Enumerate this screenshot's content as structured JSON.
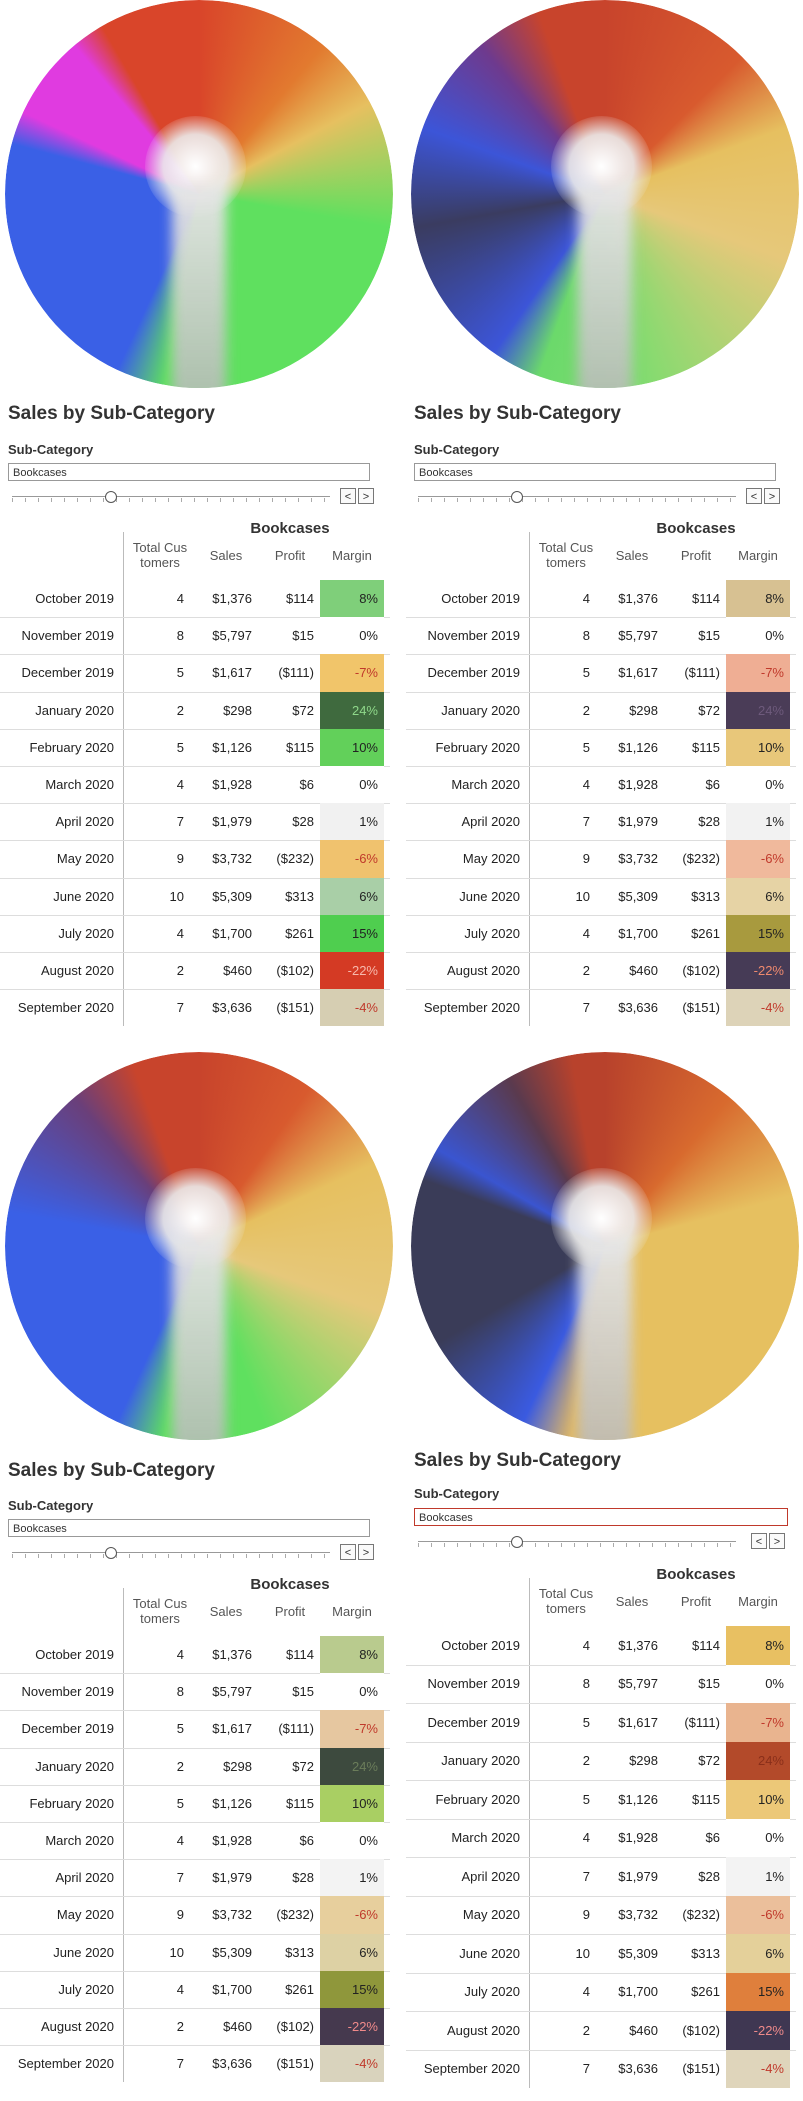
{
  "panels": [
    {
      "wheel": "vivid",
      "title": "Sales by Sub-Category",
      "filter_label": "Sub-Category",
      "filter_value": "Bookcases",
      "step_prev": "<",
      "step_next": ">",
      "table_title": "Bookcases",
      "columns": [
        "Total Cus tomers",
        "Sales",
        "Profit",
        "Margin"
      ],
      "rows": [
        {
          "month": "October 2019",
          "customers": "4",
          "sales": "$1,376",
          "profit": "$114",
          "margin": "8%",
          "color": "#7fcf7a",
          "text_color": "#222"
        },
        {
          "month": "November 2019",
          "customers": "8",
          "sales": "$5,797",
          "profit": "$15",
          "margin": "0%",
          "color": "#ffffff",
          "text_color": "#222"
        },
        {
          "month": "December 2019",
          "customers": "5",
          "sales": "$1,617",
          "profit": "($111)",
          "margin": "-7%",
          "color": "#f1c56a",
          "text_color": "#c0392b"
        },
        {
          "month": "January 2020",
          "customers": "2",
          "sales": "$298",
          "profit": "$72",
          "margin": "24%",
          "color": "#3f6a3e",
          "text_color": "#8fd88a"
        },
        {
          "month": "February 2020",
          "customers": "5",
          "sales": "$1,126",
          "profit": "$115",
          "margin": "10%",
          "color": "#62d05a",
          "text_color": "#222"
        },
        {
          "month": "March 2020",
          "customers": "4",
          "sales": "$1,928",
          "profit": "$6",
          "margin": "0%",
          "color": "#ffffff",
          "text_color": "#222"
        },
        {
          "month": "April 2020",
          "customers": "7",
          "sales": "$1,979",
          "profit": "$28",
          "margin": "1%",
          "color": "#f1f1f1",
          "text_color": "#222"
        },
        {
          "month": "May 2020",
          "customers": "9",
          "sales": "$3,732",
          "profit": "($232)",
          "margin": "-6%",
          "color": "#f0c26e",
          "text_color": "#c0392b"
        },
        {
          "month": "June 2020",
          "customers": "10",
          "sales": "$5,309",
          "profit": "$313",
          "margin": "6%",
          "color": "#a9cfa7",
          "text_color": "#222"
        },
        {
          "month": "July 2020",
          "customers": "4",
          "sales": "$1,700",
          "profit": "$261",
          "margin": "15%",
          "color": "#4fce4f",
          "text_color": "#222"
        },
        {
          "month": "August 2020",
          "customers": "2",
          "sales": "$460",
          "profit": "($102)",
          "margin": "-22%",
          "color": "#d43a24",
          "text_color": "#f7b9ad"
        },
        {
          "month": "September 2020",
          "customers": "7",
          "sales": "$3,636",
          "profit": "($151)",
          "margin": "-4%",
          "color": "#d6ceb2",
          "text_color": "#c0392b"
        }
      ]
    },
    {
      "wheel": "warm",
      "title": "Sales by Sub-Category",
      "filter_label": "Sub-Category",
      "filter_value": "Bookcases",
      "step_prev": "<",
      "step_next": ">",
      "table_title": "Bookcases",
      "columns": [
        "Total Cus tomers",
        "Sales",
        "Profit",
        "Margin"
      ],
      "rows": [
        {
          "month": "October 2019",
          "customers": "4",
          "sales": "$1,376",
          "profit": "$114",
          "margin": "8%",
          "color": "#d7c192",
          "text_color": "#222"
        },
        {
          "month": "November 2019",
          "customers": "8",
          "sales": "$5,797",
          "profit": "$15",
          "margin": "0%",
          "color": "#ffffff",
          "text_color": "#222"
        },
        {
          "month": "December 2019",
          "customers": "5",
          "sales": "$1,617",
          "profit": "($111)",
          "margin": "-7%",
          "color": "#efae94",
          "text_color": "#c0392b"
        },
        {
          "month": "January 2020",
          "customers": "2",
          "sales": "$298",
          "profit": "$72",
          "margin": "24%",
          "color": "#4a3c57",
          "text_color": "#6e5a7c"
        },
        {
          "month": "February 2020",
          "customers": "5",
          "sales": "$1,126",
          "profit": "$115",
          "margin": "10%",
          "color": "#e8c77a",
          "text_color": "#222"
        },
        {
          "month": "March 2020",
          "customers": "4",
          "sales": "$1,928",
          "profit": "$6",
          "margin": "0%",
          "color": "#ffffff",
          "text_color": "#222"
        },
        {
          "month": "April 2020",
          "customers": "7",
          "sales": "$1,979",
          "profit": "$28",
          "margin": "1%",
          "color": "#f2f2f2",
          "text_color": "#222"
        },
        {
          "month": "May 2020",
          "customers": "9",
          "sales": "$3,732",
          "profit": "($232)",
          "margin": "-6%",
          "color": "#f0b99c",
          "text_color": "#c0392b"
        },
        {
          "month": "June 2020",
          "customers": "10",
          "sales": "$5,309",
          "profit": "$313",
          "margin": "6%",
          "color": "#e6d3a5",
          "text_color": "#222"
        },
        {
          "month": "July 2020",
          "customers": "4",
          "sales": "$1,700",
          "profit": "$261",
          "margin": "15%",
          "color": "#a89a3e",
          "text_color": "#222"
        },
        {
          "month": "August 2020",
          "customers": "2",
          "sales": "$460",
          "profit": "($102)",
          "margin": "-22%",
          "color": "#463b56",
          "text_color": "#f08a6e"
        },
        {
          "month": "September 2020",
          "customers": "7",
          "sales": "$3,636",
          "profit": "($151)",
          "margin": "-4%",
          "color": "#ddd3b8",
          "text_color": "#c0392b"
        }
      ]
    },
    {
      "wheel": "mixed",
      "title": "Sales by Sub-Category",
      "filter_label": "Sub-Category",
      "filter_value": "Bookcases",
      "step_prev": "<",
      "step_next": ">",
      "table_title": "Bookcases",
      "columns": [
        "Total Cus tomers",
        "Sales",
        "Profit",
        "Margin"
      ],
      "rows": [
        {
          "month": "October 2019",
          "customers": "4",
          "sales": "$1,376",
          "profit": "$114",
          "margin": "8%",
          "color": "#b9cb8e",
          "text_color": "#222"
        },
        {
          "month": "November 2019",
          "customers": "8",
          "sales": "$5,797",
          "profit": "$15",
          "margin": "0%",
          "color": "#ffffff",
          "text_color": "#222"
        },
        {
          "month": "December 2019",
          "customers": "5",
          "sales": "$1,617",
          "profit": "($111)",
          "margin": "-7%",
          "color": "#e6c7a0",
          "text_color": "#c0392b"
        },
        {
          "month": "January 2020",
          "customers": "2",
          "sales": "$298",
          "profit": "$72",
          "margin": "24%",
          "color": "#3d4a3e",
          "text_color": "#6b7d5a"
        },
        {
          "month": "February 2020",
          "customers": "5",
          "sales": "$1,126",
          "profit": "$115",
          "margin": "10%",
          "color": "#a9cf63",
          "text_color": "#222"
        },
        {
          "month": "March 2020",
          "customers": "4",
          "sales": "$1,928",
          "profit": "$6",
          "margin": "0%",
          "color": "#ffffff",
          "text_color": "#222"
        },
        {
          "month": "April 2020",
          "customers": "7",
          "sales": "$1,979",
          "profit": "$28",
          "margin": "1%",
          "color": "#f3f3f3",
          "text_color": "#222"
        },
        {
          "month": "May 2020",
          "customers": "9",
          "sales": "$3,732",
          "profit": "($232)",
          "margin": "-6%",
          "color": "#e7cf9d",
          "text_color": "#c0392b"
        },
        {
          "month": "June 2020",
          "customers": "10",
          "sales": "$5,309",
          "profit": "$313",
          "margin": "6%",
          "color": "#ddd1a4",
          "text_color": "#222"
        },
        {
          "month": "July 2020",
          "customers": "4",
          "sales": "$1,700",
          "profit": "$261",
          "margin": "15%",
          "color": "#8f973b",
          "text_color": "#222"
        },
        {
          "month": "August 2020",
          "customers": "2",
          "sales": "$460",
          "profit": "($102)",
          "margin": "-22%",
          "color": "#45394e",
          "text_color": "#f08a8a"
        },
        {
          "month": "September 2020",
          "customers": "7",
          "sales": "$3,636",
          "profit": "($151)",
          "margin": "-4%",
          "color": "#d9d3bd",
          "text_color": "#c0392b"
        }
      ]
    },
    {
      "wheel": "dark",
      "title": "Sales by Sub-Category",
      "filter_label": "Sub-Category",
      "filter_value": "Bookcases",
      "step_prev": "<",
      "step_next": ">",
      "table_title": "Bookcases",
      "columns": [
        "Total Cus tomers",
        "Sales",
        "Profit",
        "Margin"
      ],
      "rows": [
        {
          "month": "October 2019",
          "customers": "4",
          "sales": "$1,376",
          "profit": "$114",
          "margin": "8%",
          "color": "#e8c062",
          "text_color": "#222"
        },
        {
          "month": "November 2019",
          "customers": "8",
          "sales": "$5,797",
          "profit": "$15",
          "margin": "0%",
          "color": "#ffffff",
          "text_color": "#222"
        },
        {
          "month": "December 2019",
          "customers": "5",
          "sales": "$1,617",
          "profit": "($111)",
          "margin": "-7%",
          "color": "#e9b48f",
          "text_color": "#c0392b"
        },
        {
          "month": "January 2020",
          "customers": "2",
          "sales": "$298",
          "profit": "$72",
          "margin": "24%",
          "color": "#b34a2a",
          "text_color": "#8a2f1a"
        },
        {
          "month": "February 2020",
          "customers": "5",
          "sales": "$1,126",
          "profit": "$115",
          "margin": "10%",
          "color": "#ecc878",
          "text_color": "#222"
        },
        {
          "month": "March 2020",
          "customers": "4",
          "sales": "$1,928",
          "profit": "$6",
          "margin": "0%",
          "color": "#ffffff",
          "text_color": "#222"
        },
        {
          "month": "April 2020",
          "customers": "7",
          "sales": "$1,979",
          "profit": "$28",
          "margin": "1%",
          "color": "#f3f3f3",
          "text_color": "#222"
        },
        {
          "month": "May 2020",
          "customers": "9",
          "sales": "$3,732",
          "profit": "($232)",
          "margin": "-6%",
          "color": "#ebbf9b",
          "text_color": "#c0392b"
        },
        {
          "month": "June 2020",
          "customers": "10",
          "sales": "$5,309",
          "profit": "$313",
          "margin": "6%",
          "color": "#e4d09a",
          "text_color": "#222"
        },
        {
          "month": "July 2020",
          "customers": "4",
          "sales": "$1,700",
          "profit": "$261",
          "margin": "15%",
          "color": "#df7f3c",
          "text_color": "#222"
        },
        {
          "month": "August 2020",
          "customers": "2",
          "sales": "$460",
          "profit": "($102)",
          "margin": "-22%",
          "color": "#3f3752",
          "text_color": "#f08a8a"
        },
        {
          "month": "September 2020",
          "customers": "7",
          "sales": "$3,636",
          "profit": "($151)",
          "margin": "-4%",
          "color": "#dfd5bb",
          "text_color": "#c0392b"
        }
      ]
    }
  ]
}
